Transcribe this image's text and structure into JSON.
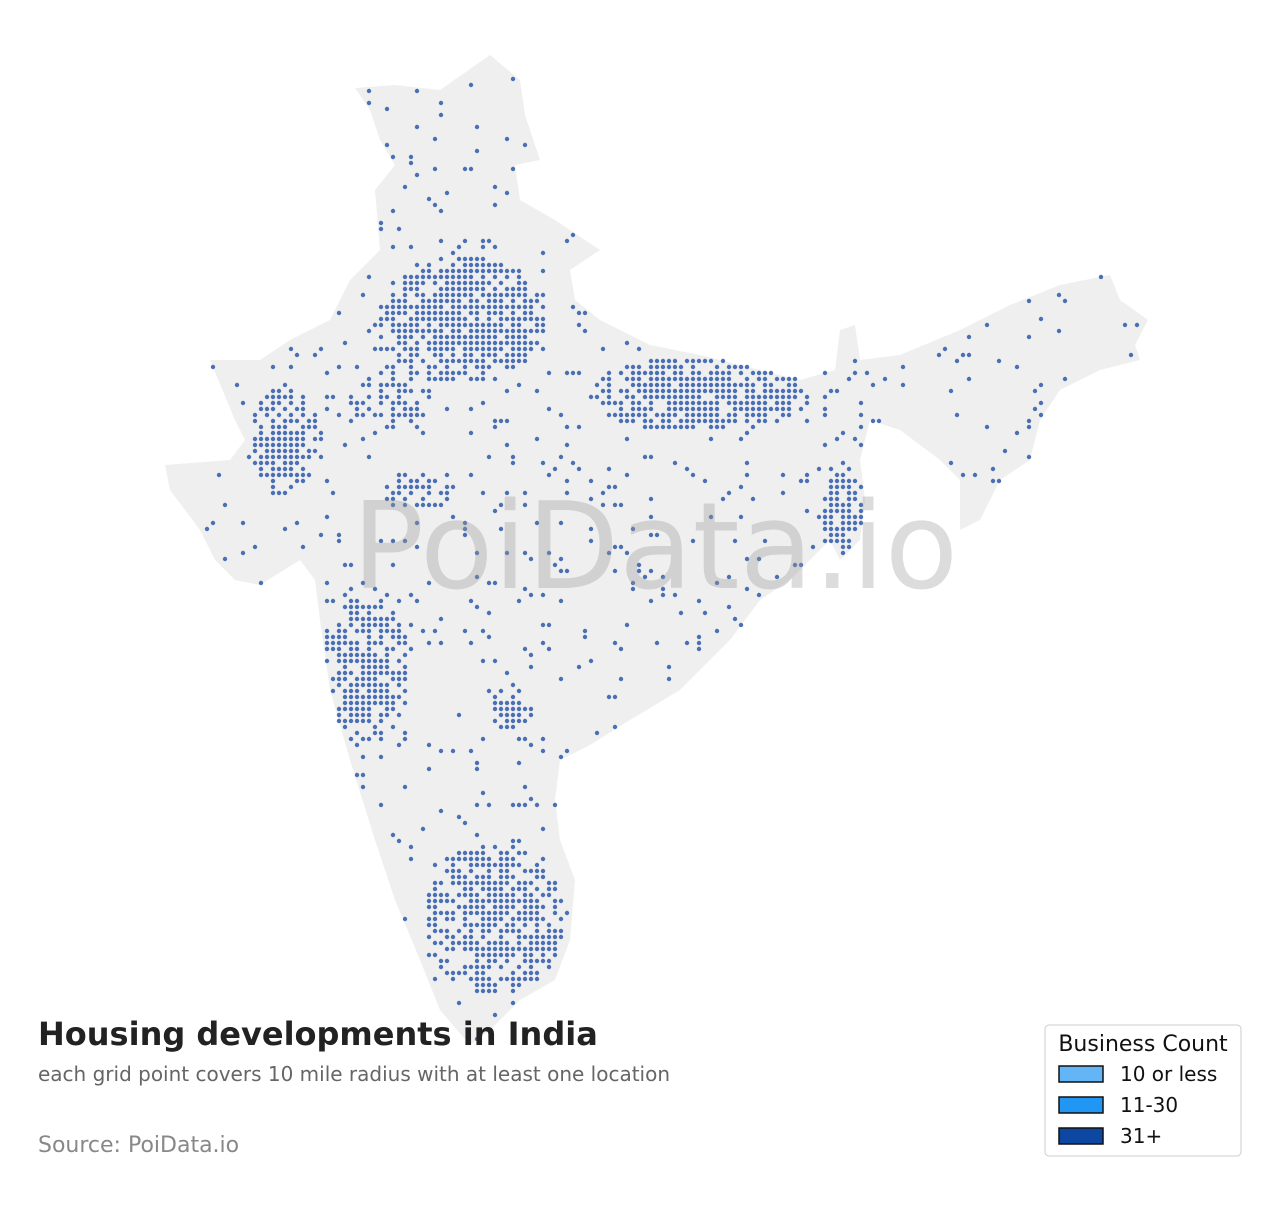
{
  "map": {
    "title": "Housing developments in India",
    "subtitle": "each grid point covers 10 mile radius with at least one location",
    "source": "Source: PoiData.io",
    "watermark": "PoiData.io",
    "point_color": "#4a6fb5",
    "legend": {
      "title": "Business Count",
      "items": [
        {
          "label": "10 or less",
          "color": "#64b5f6"
        },
        {
          "label": "11-30",
          "color": "#2196f3"
        },
        {
          "label": "31+",
          "color": "#0d47a1"
        }
      ]
    }
  }
}
